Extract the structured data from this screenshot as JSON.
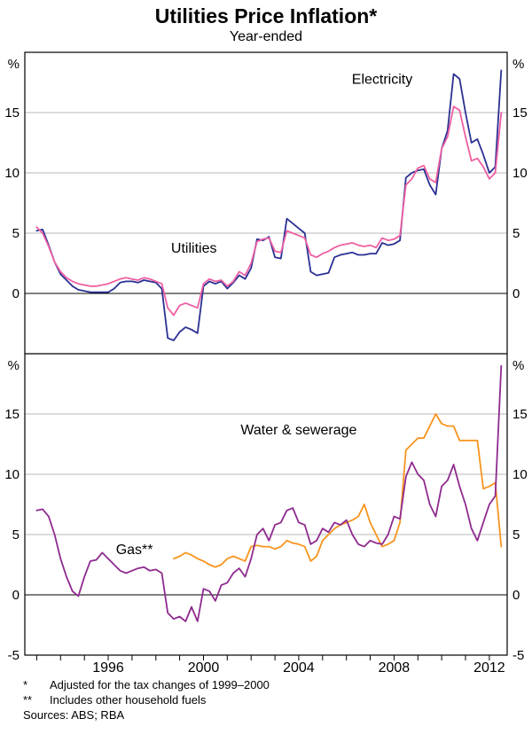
{
  "title": "Utilities Price Inflation*",
  "subtitle": "Year-ended",
  "footnotes": [
    {
      "marker": "*",
      "text": "Adjusted for the tax changes of 1999–2000"
    },
    {
      "marker": "**",
      "text": "Includes other household fuels"
    }
  ],
  "sources": "Sources: ABS; RBA",
  "chart_data": {
    "type": "line",
    "title": "Utilities Price Inflation*",
    "subtitle": "Year-ended",
    "unit": "%",
    "grid": "horizontal-only",
    "x_axis": {
      "min": 1992.5,
      "max": 2012.75,
      "labels": [
        {
          "v": 1996,
          "t": "1996"
        },
        {
          "v": 2000,
          "t": "2000"
        },
        {
          "v": 2004,
          "t": "2004"
        },
        {
          "v": 2008,
          "t": "2008"
        },
        {
          "v": 2012,
          "t": "2012"
        }
      ]
    },
    "panels": [
      {
        "name": "top-panel",
        "ylim": [
          -5,
          20
        ],
        "unit": "%",
        "gridlines": [
          0,
          5,
          10,
          15
        ],
        "y_labels": [
          {
            "v": 15,
            "t": "15"
          },
          {
            "v": 10,
            "t": "10"
          },
          {
            "v": 5,
            "t": "5"
          },
          {
            "v": 0,
            "t": "0"
          }
        ],
        "series": [
          {
            "name": "Electricity",
            "color": "#2b3092",
            "label_pos": {
              "x": 2007.5,
              "y": 17.4
            },
            "x_start": 1993.0,
            "x_step": 0.25,
            "values": [
              5.2,
              5.3,
              4.0,
              2.6,
              1.6,
              1.1,
              0.6,
              0.3,
              0.2,
              0.1,
              0.1,
              0.1,
              0.1,
              0.4,
              0.9,
              1.0,
              1.0,
              0.9,
              1.1,
              1.0,
              0.9,
              0.4,
              -3.7,
              -3.9,
              -3.2,
              -2.8,
              -3.0,
              -3.3,
              0.6,
              1.0,
              0.8,
              1.0,
              0.4,
              0.9,
              1.5,
              1.2,
              2.1,
              4.5,
              4.4,
              4.7,
              3.0,
              2.9,
              6.2,
              5.8,
              5.4,
              5.0,
              1.8,
              1.5,
              1.6,
              1.7,
              3.0,
              3.2,
              3.3,
              3.4,
              3.2,
              3.2,
              3.3,
              3.3,
              4.2,
              4.0,
              4.1,
              4.4,
              9.6,
              10.0,
              10.2,
              10.3,
              9.0,
              8.2,
              12.0,
              13.5,
              18.2,
              17.8,
              15.0,
              12.5,
              12.8,
              11.5,
              10.0,
              10.5,
              18.5
            ]
          },
          {
            "name": "Utilities",
            "color": "#ef5fa2",
            "label_pos": {
              "x": 1999.6,
              "y": 3.4
            },
            "x_start": 1993.0,
            "x_step": 0.25,
            "values": [
              5.5,
              5.0,
              3.9,
              2.6,
              1.8,
              1.3,
              1.0,
              0.8,
              0.7,
              0.6,
              0.6,
              0.7,
              0.8,
              1.0,
              1.2,
              1.3,
              1.2,
              1.1,
              1.3,
              1.2,
              1.0,
              0.8,
              -1.2,
              -1.8,
              -1.0,
              -0.8,
              -1.0,
              -1.2,
              0.8,
              1.2,
              1.0,
              1.1,
              0.6,
              1.0,
              1.8,
              1.5,
              2.5,
              4.3,
              4.5,
              4.6,
              3.5,
              3.4,
              5.2,
              5.0,
              4.8,
              4.6,
              3.2,
              3.0,
              3.3,
              3.5,
              3.8,
              4.0,
              4.1,
              4.2,
              4.0,
              3.9,
              4.0,
              3.8,
              4.6,
              4.4,
              4.5,
              4.8,
              9.0,
              9.5,
              10.4,
              10.6,
              9.5,
              9.2,
              12.0,
              13.0,
              15.5,
              15.2,
              13.0,
              11.0,
              11.2,
              10.5,
              9.5,
              10.0,
              15.0
            ]
          }
        ]
      },
      {
        "name": "bottom-panel",
        "ylim": [
          -5,
          20
        ],
        "unit": "%",
        "gridlines": [
          0,
          5,
          10,
          15
        ],
        "y_labels": [
          {
            "v": 15,
            "t": "15"
          },
          {
            "v": 10,
            "t": "10"
          },
          {
            "v": 5,
            "t": "5"
          },
          {
            "v": 0,
            "t": "0"
          },
          {
            "v": -5,
            "t": "-5"
          }
        ],
        "series": [
          {
            "name": "Water & sewerage",
            "color": "#f7941d",
            "label_pos": {
              "x": 2004.0,
              "y": 13.3
            },
            "x_start": 1998.75,
            "x_step": 0.25,
            "values": [
              3.0,
              3.2,
              3.5,
              3.3,
              3.0,
              2.8,
              2.5,
              2.3,
              2.5,
              3.0,
              3.2,
              3.0,
              2.8,
              4.0,
              4.1,
              4.0,
              4.0,
              3.8,
              4.0,
              4.5,
              4.3,
              4.2,
              4.0,
              2.8,
              3.2,
              4.5,
              5.0,
              5.5,
              5.8,
              6.0,
              6.2,
              6.5,
              7.5,
              6.0,
              5.0,
              4.0,
              4.2,
              4.5,
              6.0,
              12.0,
              12.5,
              13.0,
              13.0,
              14.0,
              15.0,
              14.2,
              14.0,
              14.0,
              12.8,
              12.8,
              12.8,
              12.8,
              8.8,
              9.0,
              9.3,
              4.0
            ]
          },
          {
            "name": "Gas**",
            "color": "#8f2a8f",
            "label_pos": {
              "x": 1997.1,
              "y": 3.4
            },
            "x_start": 1993.0,
            "x_step": 0.25,
            "values": [
              7.0,
              7.1,
              6.5,
              5.0,
              3.0,
              1.5,
              0.3,
              -0.1,
              1.5,
              2.8,
              2.9,
              3.5,
              3.0,
              2.5,
              2.0,
              1.8,
              2.0,
              2.2,
              2.3,
              2.0,
              2.1,
              1.8,
              -1.5,
              -2.0,
              -1.8,
              -2.2,
              -1.0,
              -2.2,
              0.5,
              0.3,
              -0.5,
              0.8,
              1.0,
              1.8,
              2.2,
              1.5,
              3.0,
              5.0,
              5.5,
              4.5,
              5.8,
              6.0,
              7.0,
              7.2,
              6.0,
              5.8,
              4.2,
              4.5,
              5.5,
              5.2,
              6.0,
              5.8,
              6.2,
              5.0,
              4.2,
              4.0,
              4.5,
              4.3,
              4.2,
              5.0,
              6.5,
              6.3,
              9.8,
              11.0,
              10.0,
              9.5,
              7.5,
              6.5,
              9.0,
              9.5,
              10.8,
              9.0,
              7.5,
              5.5,
              4.5,
              6.0,
              7.5,
              8.2,
              19.0
            ]
          }
        ]
      }
    ]
  }
}
